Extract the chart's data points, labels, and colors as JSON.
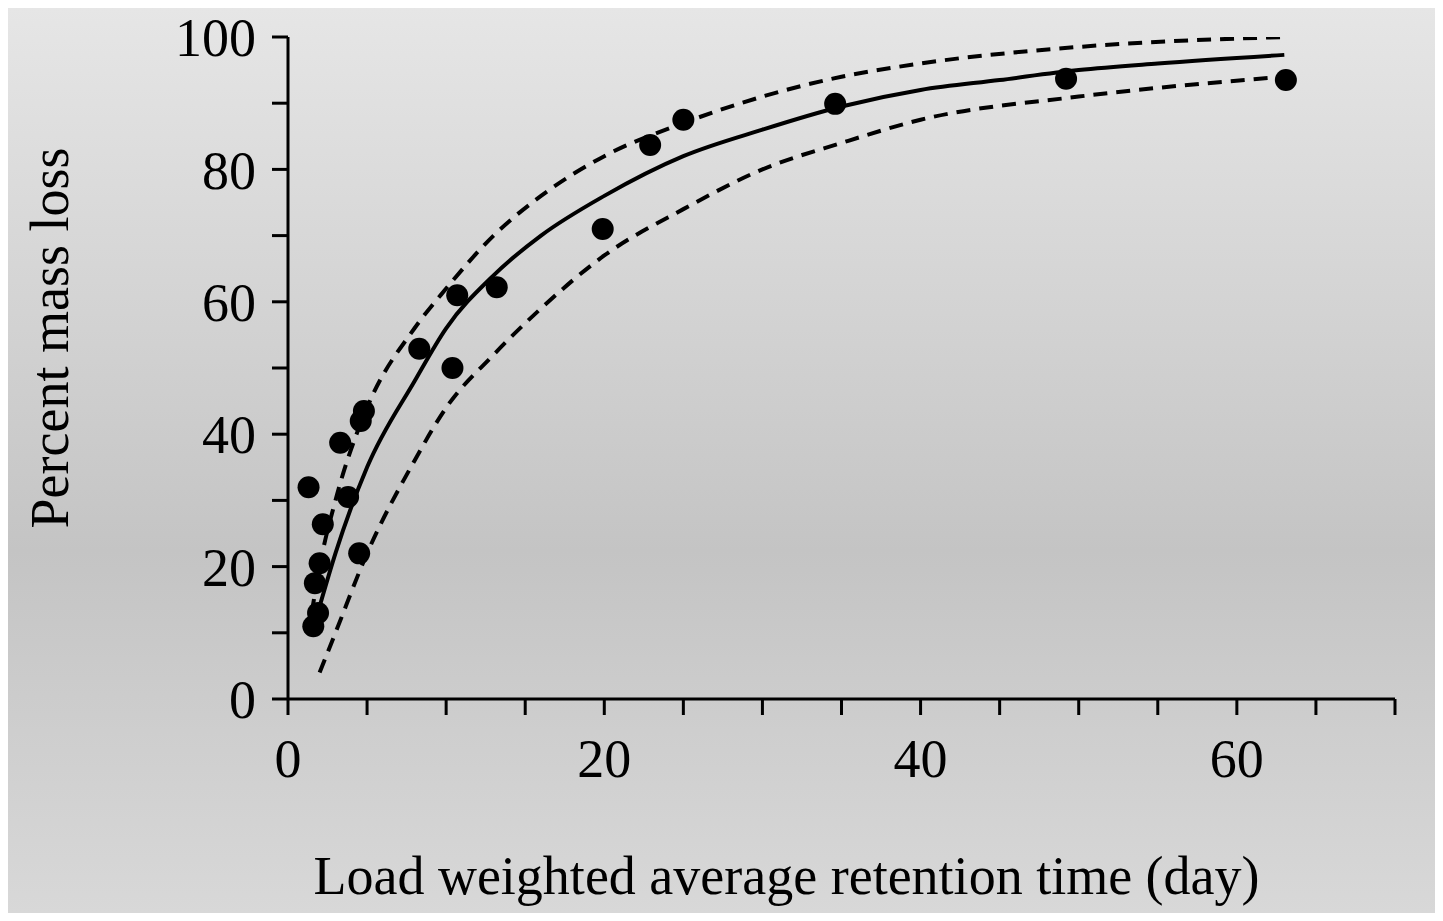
{
  "chart_data": {
    "type": "scatter",
    "xlabel": "Load weighted average retention time (day)",
    "ylabel": "Percent mass loss",
    "xlim": [
      0,
      70
    ],
    "xticks": [
      0,
      {
        "value": 5,
        "label": null
      },
      {
        "value": 10,
        "label": null
      },
      {
        "value": 15,
        "label": null
      },
      20,
      {
        "value": 25,
        "label": null
      },
      {
        "value": 30,
        "label": null
      },
      {
        "value": 35,
        "label": null
      },
      40,
      {
        "value": 45,
        "label": null
      },
      {
        "value": 50,
        "label": null
      },
      {
        "value": 55,
        "label": null
      },
      60,
      {
        "value": 65,
        "label": null
      },
      {
        "value": 70,
        "label": null
      }
    ],
    "ylim": [
      0,
      100
    ],
    "yticks": [
      0,
      {
        "value": 10,
        "label": null
      },
      20,
      {
        "value": 30,
        "label": null
      },
      40,
      {
        "value": 50,
        "label": null
      },
      60,
      {
        "value": 70,
        "label": null
      },
      80,
      {
        "value": 90,
        "label": null
      },
      100
    ],
    "grid": false,
    "legend": false,
    "series": [
      {
        "type": "scatter",
        "marker": "circle",
        "color": "#000000",
        "x": [
          1.3,
          2.2,
          3.3,
          3.8,
          4.6,
          4.8,
          4.5,
          2.0,
          1.7,
          1.9,
          1.6,
          8.3,
          10.7,
          10.4,
          13.2,
          19.9,
          22.9,
          25.0,
          34.6,
          49.2,
          63.1
        ],
        "values": [
          32,
          26.4,
          38.7,
          30.5,
          42,
          43.5,
          22,
          20.5,
          17.5,
          13,
          11,
          52.9,
          61,
          50,
          62.2,
          71,
          83.7,
          87.5,
          89.9,
          93.7,
          93.5
        ]
      },
      {
        "type": "line",
        "marker": "none",
        "line_style": "solid",
        "color": "#000000",
        "x": [
          2,
          3,
          5,
          8,
          10,
          13,
          16,
          20,
          25,
          30,
          35,
          40,
          45,
          50,
          55,
          63
        ],
        "values": [
          14,
          22,
          35,
          48,
          56,
          64,
          70,
          76,
          82,
          86,
          89.5,
          92,
          93.5,
          95,
          96,
          97.3
        ]
      },
      {
        "type": "line",
        "marker": "none",
        "line_style": "dashed",
        "color": "#000000",
        "x": [
          1.5,
          2,
          3,
          5,
          8,
          10,
          13,
          16,
          20,
          25,
          30,
          35,
          40,
          50,
          63
        ],
        "values": [
          13,
          20,
          30,
          44,
          56,
          62,
          70,
          76,
          82,
          87,
          91,
          94,
          96,
          98.5,
          100
        ]
      },
      {
        "type": "line",
        "marker": "none",
        "line_style": "dashed",
        "color": "#000000",
        "x": [
          2,
          3,
          5,
          8,
          10,
          13,
          16,
          20,
          25,
          30,
          35,
          40,
          50,
          63
        ],
        "values": [
          4,
          10,
          22,
          36,
          44,
          52,
          59,
          67,
          74,
          80,
          84,
          87.5,
          91,
          94
        ]
      }
    ]
  }
}
